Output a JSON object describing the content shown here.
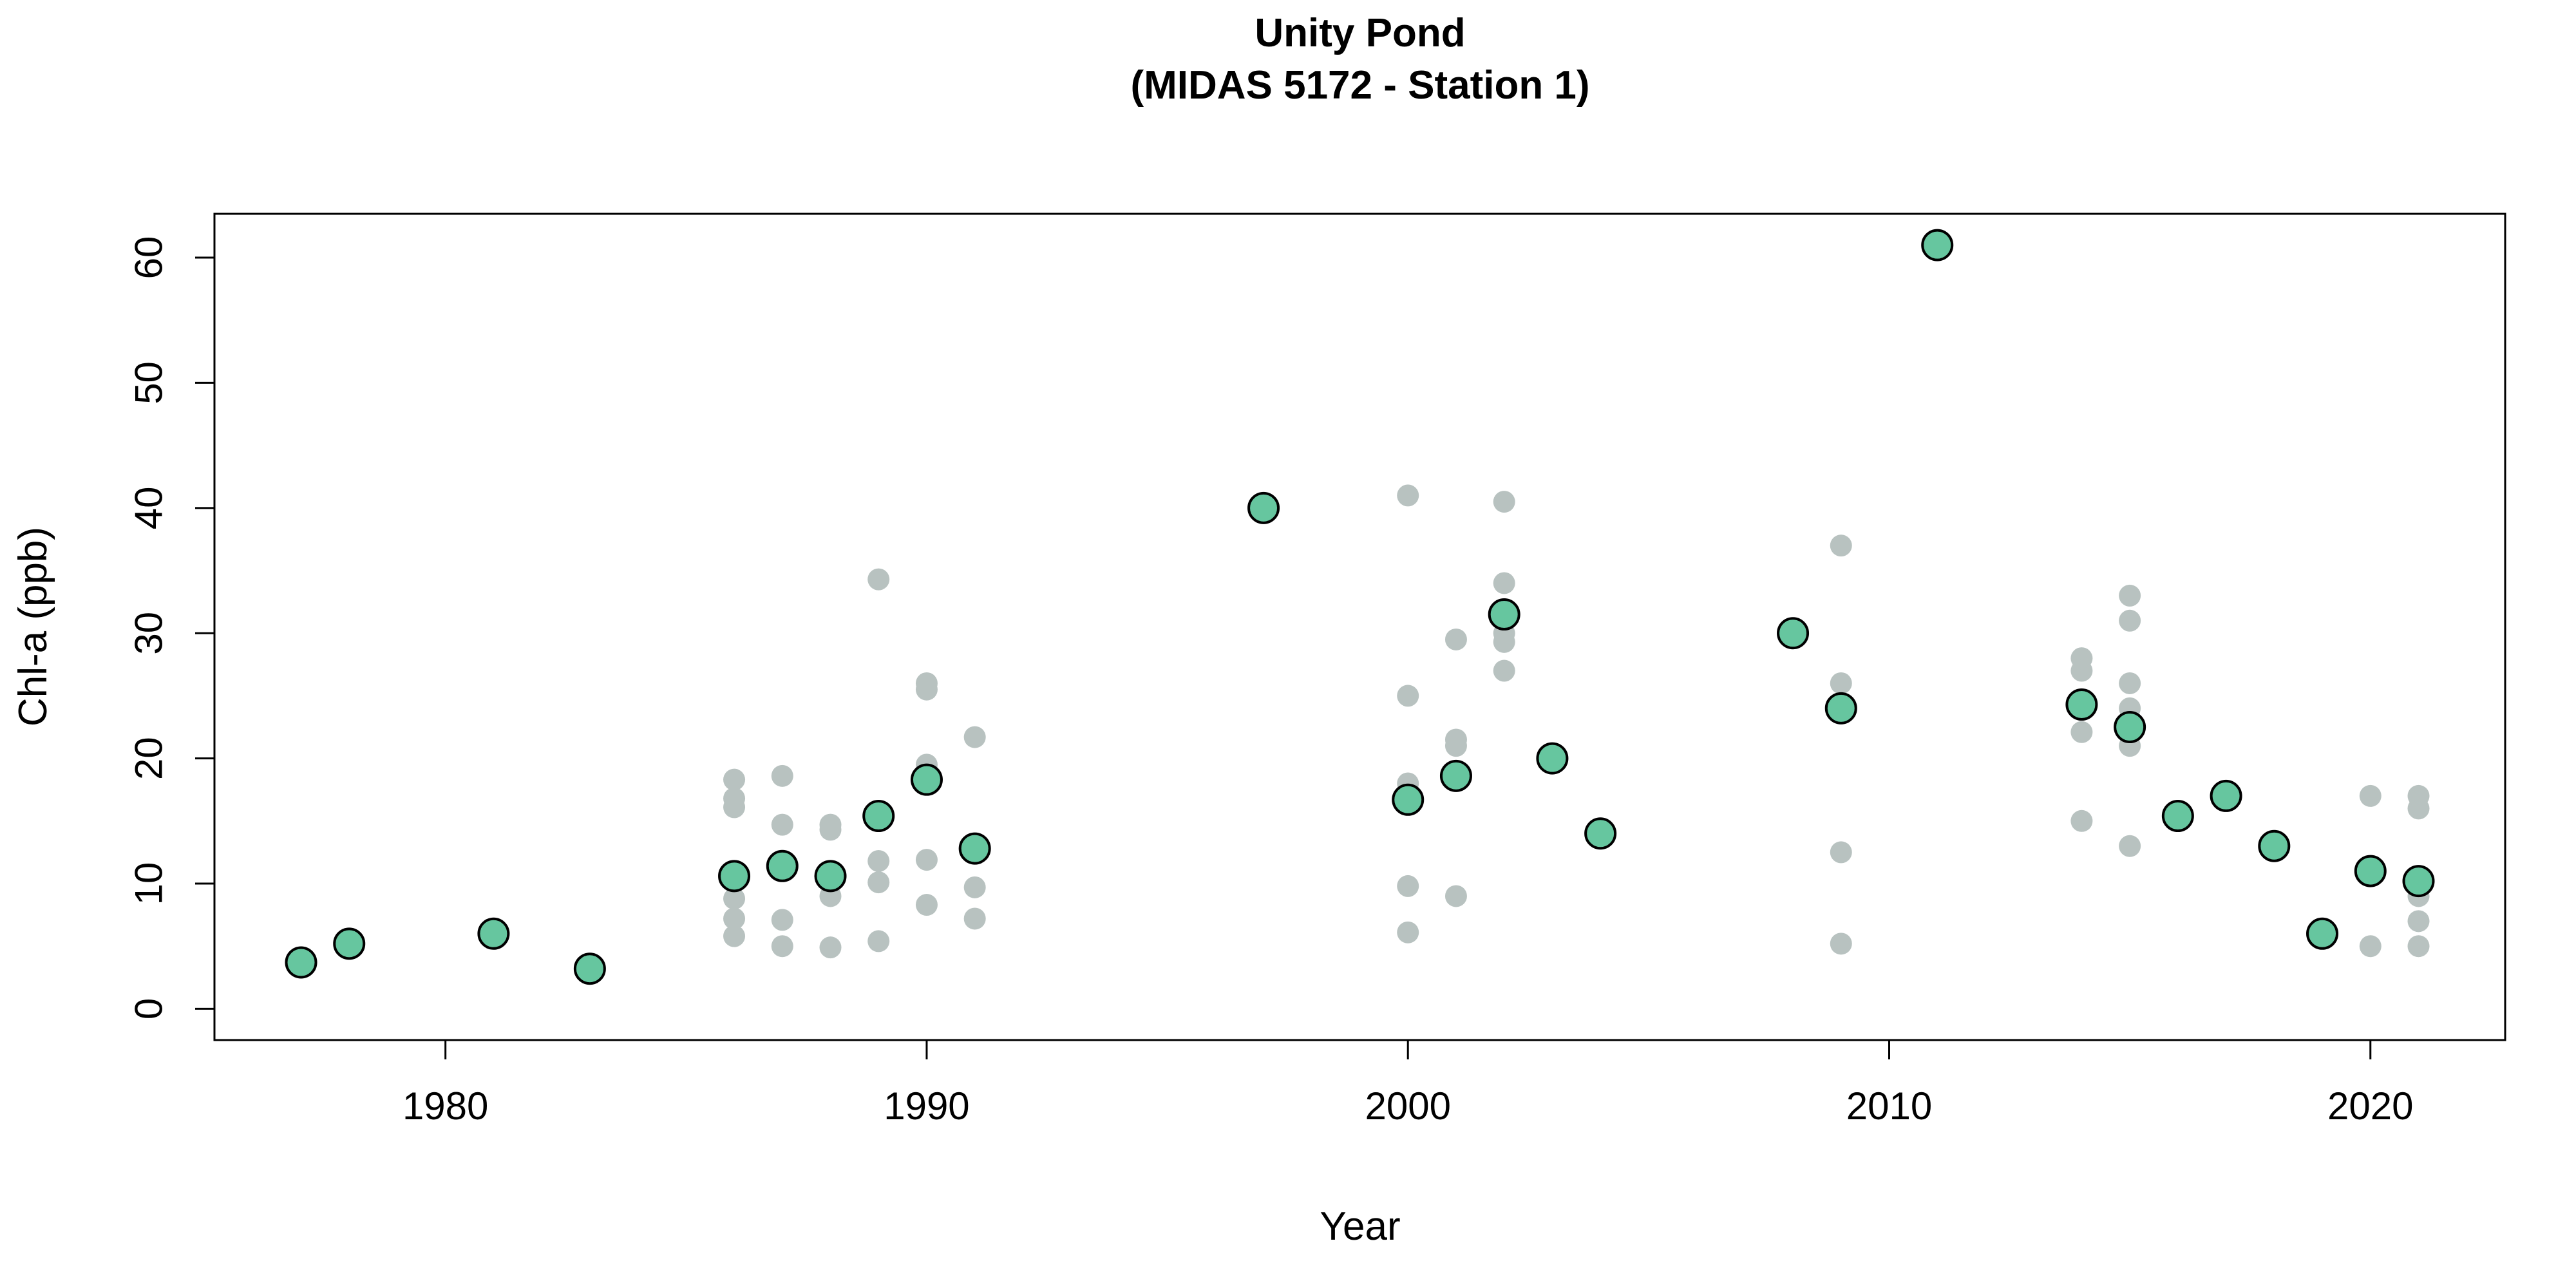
{
  "chart_data": {
    "type": "scatter",
    "title": "Unity Pond",
    "subtitle": "(MIDAS 5172 - Station 1)",
    "xlabel": "Year",
    "ylabel": "Chl-a (ppb)",
    "xlim": [
      1975.2,
      2022.8
    ],
    "ylim": [
      -2.5,
      63.5
    ],
    "x_ticks": [
      1980,
      1990,
      2000,
      2010,
      2020
    ],
    "y_ticks": [
      0,
      10,
      20,
      30,
      40,
      50,
      60
    ],
    "grid": false,
    "colors": {
      "individual": "#b8c2c0",
      "mean": "#66c69f",
      "mean_outline": "#000000"
    },
    "series": [
      {
        "points": [
          [
            1986,
            18.3
          ],
          [
            1986,
            16.8
          ],
          [
            1986,
            16.1
          ],
          [
            1986,
            11.0
          ],
          [
            1986,
            8.8
          ],
          [
            1986,
            7.2
          ],
          [
            1986,
            5.8
          ],
          [
            1987,
            18.6
          ],
          [
            1987,
            14.7
          ],
          [
            1987,
            11.4
          ],
          [
            1987,
            7.1
          ],
          [
            1987,
            5.0
          ],
          [
            1988,
            14.7
          ],
          [
            1988,
            14.3
          ],
          [
            1988,
            10.5
          ],
          [
            1988,
            9.0
          ],
          [
            1988,
            4.9
          ],
          [
            1989,
            34.3
          ],
          [
            1989,
            15.4
          ],
          [
            1989,
            11.8
          ],
          [
            1989,
            10.1
          ],
          [
            1989,
            5.4
          ],
          [
            1990,
            26.0
          ],
          [
            1990,
            25.5
          ],
          [
            1990,
            19.5
          ],
          [
            1990,
            18.2
          ],
          [
            1990,
            11.9
          ],
          [
            1990,
            8.3
          ],
          [
            1991,
            21.7
          ],
          [
            1991,
            12.8
          ],
          [
            1991,
            9.7
          ],
          [
            1991,
            7.2
          ],
          [
            2000,
            41.0
          ],
          [
            2000,
            25.0
          ],
          [
            2000,
            18.0
          ],
          [
            2000,
            16.5
          ],
          [
            2000,
            9.8
          ],
          [
            2000,
            6.1
          ],
          [
            2001,
            29.5
          ],
          [
            2001,
            21.5
          ],
          [
            2001,
            21.0
          ],
          [
            2001,
            18.6
          ],
          [
            2001,
            9.0
          ],
          [
            2002,
            40.5
          ],
          [
            2002,
            34.0
          ],
          [
            2002,
            30.0
          ],
          [
            2002,
            29.3
          ],
          [
            2002,
            27.0
          ],
          [
            2009,
            37.0
          ],
          [
            2009,
            26.0
          ],
          [
            2009,
            24.0
          ],
          [
            2009,
            12.5
          ],
          [
            2009,
            5.2
          ],
          [
            2014,
            28.0
          ],
          [
            2014,
            27.0
          ],
          [
            2014,
            24.3
          ],
          [
            2014,
            22.1
          ],
          [
            2014,
            15.0
          ],
          [
            2015,
            33.0
          ],
          [
            2015,
            31.0
          ],
          [
            2015,
            26.0
          ],
          [
            2015,
            24.0
          ],
          [
            2015,
            22.5
          ],
          [
            2015,
            21.0
          ],
          [
            2015,
            13.0
          ],
          [
            2020,
            17.0
          ],
          [
            2020,
            11.0
          ],
          [
            2020,
            5.0
          ],
          [
            2021,
            17.0
          ],
          [
            2021,
            16.0
          ],
          [
            2021,
            10.1
          ],
          [
            2021,
            9.0
          ],
          [
            2021,
            7.0
          ],
          [
            2021,
            5.0
          ]
        ]
      },
      {
        "points": [
          [
            1977,
            3.7
          ],
          [
            1978,
            5.2
          ],
          [
            1981,
            6.0
          ],
          [
            1983,
            3.2
          ],
          [
            1986,
            10.6
          ],
          [
            1987,
            11.4
          ],
          [
            1988,
            10.6
          ],
          [
            1989,
            15.4
          ],
          [
            1990,
            18.3
          ],
          [
            1991,
            12.8
          ],
          [
            1997,
            40.0
          ],
          [
            2000,
            16.7
          ],
          [
            2001,
            18.6
          ],
          [
            2002,
            31.5
          ],
          [
            2003,
            20.0
          ],
          [
            2004,
            14.0
          ],
          [
            2008,
            30.0
          ],
          [
            2009,
            24.0
          ],
          [
            2011,
            61.0
          ],
          [
            2014,
            24.3
          ],
          [
            2015,
            22.5
          ],
          [
            2016,
            15.4
          ],
          [
            2017,
            17.0
          ],
          [
            2018,
            13.0
          ],
          [
            2019,
            6.0
          ],
          [
            2020,
            11.0
          ],
          [
            2021,
            10.2
          ]
        ]
      }
    ]
  }
}
